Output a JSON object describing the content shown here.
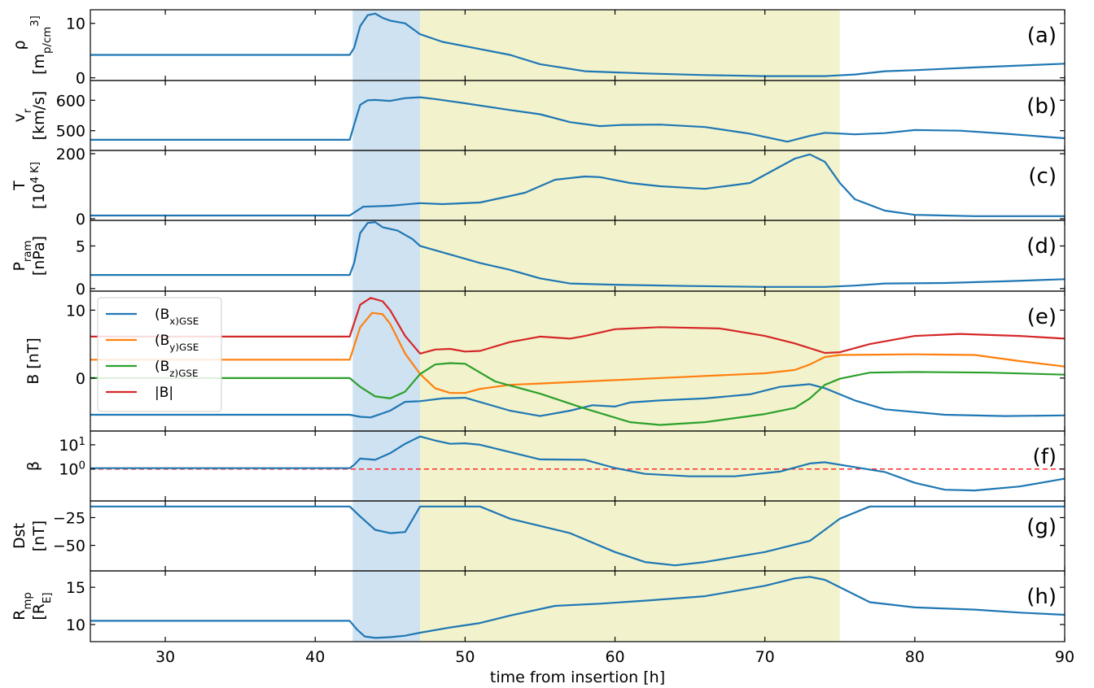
{
  "chart_data": {
    "type": "line",
    "xlabel": "time from insertion [h]",
    "xlim": [
      25,
      90
    ],
    "xticks": [
      30,
      40,
      50,
      60,
      70,
      80,
      90
    ],
    "regions": [
      {
        "x0": 42.5,
        "x1": 47,
        "color": "#cfe2f1"
      },
      {
        "x0": 47,
        "x1": 75,
        "color": "#f2f3cc"
      }
    ],
    "panels": [
      {
        "id": "a",
        "label": "(a)",
        "ylabel_lines": [
          "ρ",
          "[m_p/cm^3]"
        ],
        "ylim": [
          -0.5,
          12.5
        ],
        "yticks": [
          0,
          10
        ],
        "scale": "linear",
        "series": [
          {
            "name": "",
            "color": "#1f77b4",
            "x": [
              25,
              42.3,
              42.6,
              43.0,
              43.5,
              44.0,
              44.5,
              45.0,
              46.0,
              47.0,
              48.5,
              50.0,
              53.0,
              55.0,
              58.0,
              62.0,
              66.0,
              70.0,
              74.0,
              76.0,
              78.0,
              80.0,
              84.0,
              90.0
            ],
            "y": [
              4.2,
              4.2,
              5.5,
              9.5,
              11.5,
              11.8,
              11.0,
              10.5,
              10.0,
              8.0,
              6.6,
              5.8,
              4.2,
              2.5,
              1.2,
              0.8,
              0.5,
              0.3,
              0.3,
              0.6,
              1.2,
              1.4,
              1.9,
              2.6
            ]
          }
        ]
      },
      {
        "id": "b",
        "label": "(b)",
        "ylabel_lines": [
          "v_r",
          "[km/s]"
        ],
        "ylim": [
          435,
          665
        ],
        "yticks": [
          500,
          600
        ],
        "scale": "linear",
        "series": [
          {
            "name": "",
            "color": "#1f77b4",
            "x": [
              25,
              42.3,
              42.6,
              43.0,
              43.5,
              44.0,
              45.0,
              46.0,
              47.0,
              48.0,
              50.0,
              53.0,
              55.0,
              57.0,
              59.0,
              60.5,
              63.0,
              66.0,
              69.0,
              71.5,
              73.0,
              74.0,
              76.0,
              78.0,
              80.0,
              83.0,
              86.0,
              90.0
            ],
            "y": [
              470,
              470,
              520,
              585,
              600,
              601,
              598,
              607,
              610,
              604,
              590,
              568,
              554,
              528,
              515,
              519,
              520,
              512,
              490,
              464,
              483,
              493,
              488,
              492,
              502,
              500,
              490,
              475
            ]
          }
        ]
      },
      {
        "id": "c",
        "label": "(c)",
        "ylabel_lines": [
          "T",
          "[10^4 K]"
        ],
        "ylim": [
          -5,
          210
        ],
        "yticks": [
          0,
          200
        ],
        "scale": "linear",
        "series": [
          {
            "name": "",
            "color": "#1f77b4",
            "x": [
              25,
              42.3,
              42.8,
              43.2,
              45.0,
              47.0,
              48.5,
              51.0,
              54.0,
              56.0,
              58.0,
              59.0,
              61.0,
              63.0,
              66.0,
              69.0,
              71.0,
              72.0,
              73.0,
              74.0,
              75.0,
              76.0,
              78.0,
              80.0,
              84.0,
              90.0
            ],
            "y": [
              10,
              10,
              25,
              37,
              40,
              48,
              45,
              50,
              80,
              120,
              130,
              128,
              110,
              100,
              92,
              110,
              160,
              185,
              198,
              175,
              110,
              60,
              25,
              12,
              8,
              8
            ]
          }
        ]
      },
      {
        "id": "d",
        "label": "(d)",
        "ylabel_lines": [
          "P_ram",
          "[nPa]"
        ],
        "ylim": [
          -0.3,
          8.0
        ],
        "yticks": [
          0,
          5
        ],
        "scale": "linear",
        "series": [
          {
            "name": "",
            "color": "#1f77b4",
            "x": [
              25,
              42.3,
              42.6,
              43.0,
              43.5,
              44.0,
              44.5,
              45.5,
              46.5,
              47.0,
              49.0,
              51.0,
              53.0,
              55.0,
              57.0,
              60.0,
              65.0,
              70.0,
              74.0,
              76.0,
              78.0,
              82.0,
              86.0,
              90.0
            ],
            "y": [
              1.6,
              1.6,
              3.0,
              6.5,
              7.7,
              7.8,
              7.2,
              6.8,
              5.8,
              5.0,
              4.0,
              3.0,
              2.2,
              1.2,
              0.6,
              0.45,
              0.3,
              0.2,
              0.2,
              0.35,
              0.6,
              0.65,
              0.85,
              1.1
            ]
          }
        ]
      },
      {
        "id": "e",
        "label": "(e)",
        "ylabel_lines": [
          "B [nT]"
        ],
        "ylim": [
          -7.8,
          12.8
        ],
        "yticks": [
          0,
          10
        ],
        "scale": "linear",
        "legend_position": "upper-left",
        "series": [
          {
            "name": "(B_x)_GSE",
            "color": "#1f77b4",
            "x": [
              25,
              42.3,
              43.0,
              43.7,
              45.0,
              46.0,
              47.0,
              48.5,
              50.0,
              53.0,
              55.0,
              57.0,
              58.5,
              60.0,
              61.0,
              63.0,
              66.0,
              69.0,
              71.0,
              73.0,
              74.0,
              76.0,
              78.0,
              82.0,
              86.0,
              90.0
            ],
            "y": [
              -5.4,
              -5.4,
              -5.7,
              -5.8,
              -4.8,
              -3.5,
              -3.4,
              -3.0,
              -2.9,
              -4.8,
              -5.6,
              -4.8,
              -4.0,
              -4.2,
              -3.6,
              -3.3,
              -3.0,
              -2.4,
              -1.3,
              -0.9,
              -1.5,
              -3.3,
              -4.6,
              -5.4,
              -5.6,
              -5.5
            ]
          },
          {
            "name": "(B_y)_GSE",
            "color": "#ff7f0e",
            "x": [
              25,
              42.3,
              43.0,
              43.8,
              44.5,
              45.0,
              46.0,
              47.0,
              48.0,
              49.0,
              50.0,
              51.0,
              53.0,
              55.0,
              60.0,
              65.0,
              70.0,
              72.0,
              73.0,
              74.0,
              75.0,
              80.0,
              84.0,
              87.0,
              90.0
            ],
            "y": [
              2.7,
              2.7,
              7.5,
              9.6,
              9.4,
              8.0,
              3.6,
              0.6,
              -1.5,
              -2.2,
              -2.2,
              -1.6,
              -1.0,
              -0.8,
              -0.3,
              0.2,
              0.7,
              1.2,
              2.0,
              3.1,
              3.4,
              3.5,
              3.4,
              2.5,
              1.7
            ]
          },
          {
            "name": "(B_z)_GSE",
            "color": "#2ca02c",
            "x": [
              25,
              42.3,
              43.0,
              44.0,
              45.0,
              46.0,
              47.0,
              48.0,
              49.0,
              50.0,
              52.0,
              55.0,
              58.0,
              61.0,
              63.0,
              66.0,
              70.0,
              72.0,
              73.0,
              74.0,
              75.0,
              77.0,
              80.0,
              85.0,
              90.0
            ],
            "y": [
              0,
              0,
              -1.3,
              -2.7,
              -3.0,
              -2.0,
              0.6,
              2.0,
              2.2,
              2.1,
              -0.5,
              -2.3,
              -4.5,
              -6.5,
              -6.9,
              -6.5,
              -5.3,
              -4.4,
              -3.0,
              -1.0,
              -0.1,
              0.8,
              0.9,
              0.8,
              0.5
            ]
          },
          {
            "name": "|B|",
            "color": "#d62728",
            "x": [
              25,
              42.3,
              43.0,
              43.7,
              44.5,
              45.0,
              46.0,
              47.0,
              48.0,
              49.0,
              50.0,
              51.0,
              53.0,
              55.0,
              57.0,
              58.0,
              60.0,
              63.0,
              67.0,
              70.0,
              72.0,
              74.0,
              75.0,
              77.0,
              80.0,
              83.0,
              87.0,
              90.0
            ],
            "y": [
              6.1,
              6.1,
              10.8,
              11.8,
              11.3,
              10.0,
              6.2,
              3.6,
              4.2,
              4.3,
              3.9,
              4.0,
              5.3,
              6.1,
              5.8,
              6.2,
              7.2,
              7.5,
              7.3,
              6.2,
              5.1,
              3.7,
              3.8,
              5.0,
              6.2,
              6.5,
              6.2,
              5.8
            ]
          }
        ]
      },
      {
        "id": "f",
        "label": "(f)",
        "ylabel_lines": [
          "β"
        ],
        "ylim": [
          0.048,
          37
        ],
        "yticks": [
          1,
          10
        ],
        "ytick_labels": [
          "10^0",
          "10^1"
        ],
        "scale": "log",
        "hline": {
          "y": 1.0,
          "color": "#ff2a2a"
        },
        "series": [
          {
            "name": "",
            "color": "#1f77b4",
            "x": [
              25,
              42.3,
              42.6,
              43.0,
              44.0,
              45.0,
              46.0,
              47.0,
              48.0,
              49.0,
              50.0,
              51.0,
              53.0,
              55.0,
              58.0,
              60.0,
              62.0,
              65.0,
              68.0,
              71.0,
              73.0,
              74.0,
              76.0,
              78.0,
              80.0,
              82.0,
              84.0,
              87.0,
              90.0
            ],
            "y": [
              1.08,
              1.08,
              1.5,
              2.7,
              2.4,
              4.5,
              11,
              22,
              15,
              11,
              11.5,
              10,
              5,
              2.5,
              2.4,
              1.1,
              0.63,
              0.5,
              0.5,
              0.78,
              1.7,
              1.9,
              1.2,
              0.75,
              0.27,
              0.14,
              0.13,
              0.19,
              0.4
            ]
          }
        ]
      },
      {
        "id": "g",
        "label": "(g)",
        "ylabel_lines": [
          "Dst",
          "[nT]"
        ],
        "ylim": [
          -73,
          -10
        ],
        "yticks": [
          -25,
          -50
        ],
        "scale": "linear",
        "series": [
          {
            "name": "",
            "color": "#1f77b4",
            "x": [
              25,
              42.3,
              43.0,
              44.0,
              45.0,
              46.0,
              47.0,
              51.0,
              53.0,
              57.0,
              60.0,
              62.0,
              64.0,
              66.0,
              70.0,
              73.0,
              74.0,
              75.0,
              77.0,
              90.0
            ],
            "y": [
              -15,
              -15,
              -24,
              -36,
              -39,
              -38,
              -15,
              -15,
              -26,
              -39,
              -56,
              -65,
              -68,
              -65,
              -56,
              -46,
              -36,
              -26,
              -15,
              -15
            ]
          }
        ]
      },
      {
        "id": "h",
        "label": "(h)",
        "ylabel_lines": [
          "R_mp",
          "[R_E]"
        ],
        "ylim": [
          7.7,
          17.2
        ],
        "yticks": [
          10,
          15
        ],
        "scale": "linear",
        "series": [
          {
            "name": "",
            "color": "#1f77b4",
            "x": [
              25,
              42.3,
              42.8,
              43.3,
              44.0,
              45.0,
              46.0,
              47.0,
              49.0,
              51.0,
              53.0,
              56.0,
              59.0,
              62.0,
              66.0,
              70.0,
              72.0,
              73.0,
              74.0,
              75.0,
              77.0,
              80.0,
              84.0,
              87.0,
              90.0
            ],
            "y": [
              10.5,
              10.5,
              9.3,
              8.4,
              8.2,
              8.3,
              8.5,
              8.9,
              9.6,
              10.2,
              11.2,
              12.5,
              12.8,
              13.2,
              13.8,
              15.2,
              16.2,
              16.4,
              16.0,
              15.0,
              13.0,
              12.3,
              12.0,
              11.6,
              11.3
            ]
          }
        ]
      }
    ]
  }
}
